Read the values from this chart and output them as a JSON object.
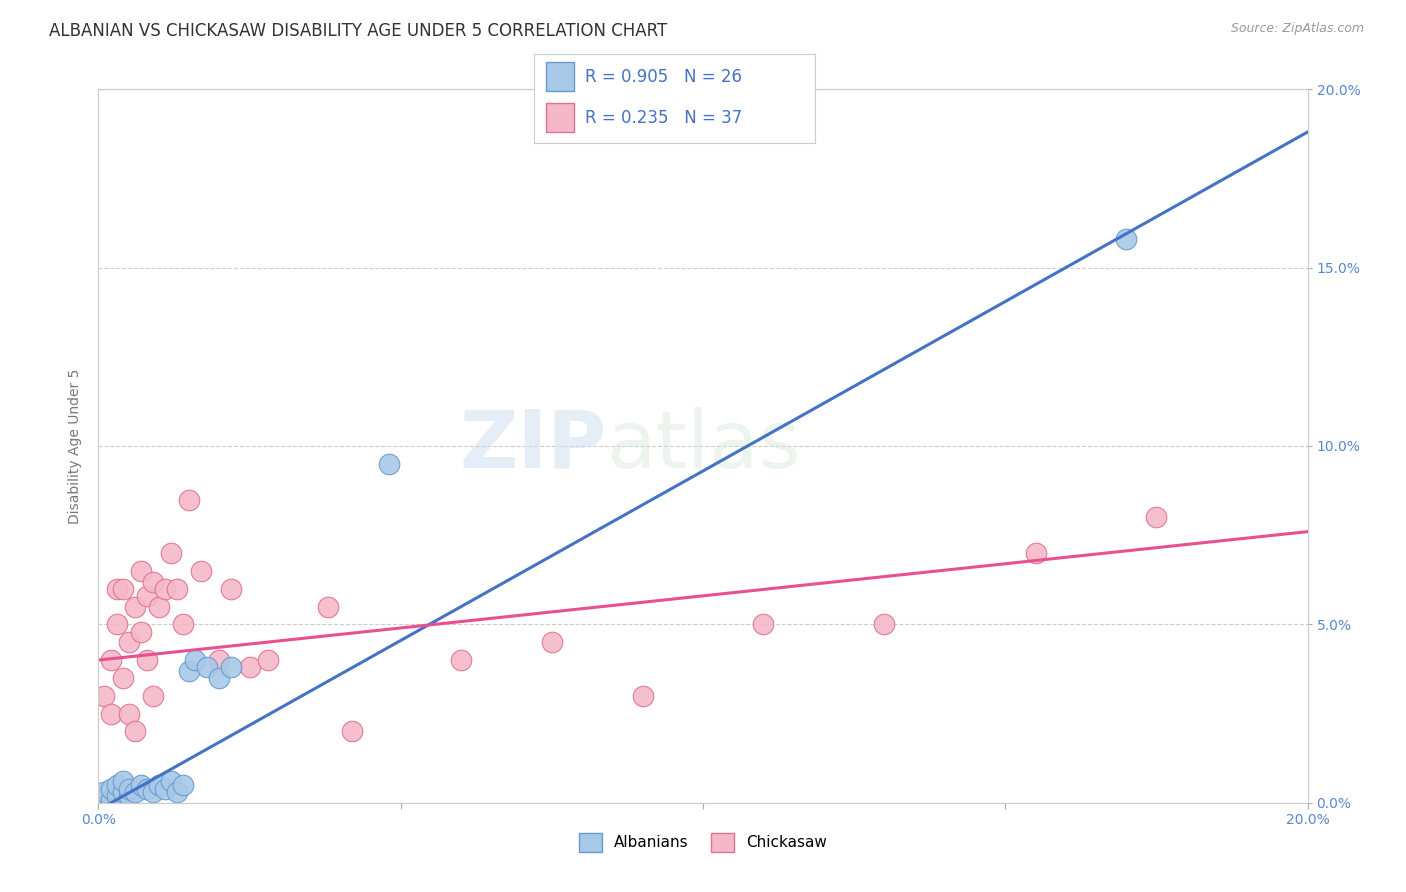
{
  "title": "ALBANIAN VS CHICKASAW DISABILITY AGE UNDER 5 CORRELATION CHART",
  "source": "Source: ZipAtlas.com",
  "ylabel": "Disability Age Under 5",
  "xlim": [
    0.0,
    0.2
  ],
  "ylim": [
    0.0,
    0.2
  ],
  "background_color": "#ffffff",
  "grid_color": "#cccccc",
  "albanians_color": "#a8c8e8",
  "albanians_edge_color": "#6699cc",
  "chickasaw_color": "#f4b8c8",
  "chickasaw_edge_color": "#e07090",
  "albanians_R": 0.905,
  "albanians_N": 26,
  "chickasaw_R": 0.235,
  "chickasaw_N": 37,
  "watermark_zip": "ZIP",
  "watermark_atlas": "atlas",
  "albanians_line_color": "#4472c4",
  "chickasaw_line_color": "#e85090",
  "ytick_labels": [
    "0.0%",
    "5.0%",
    "10.0%",
    "15.0%",
    "20.0%"
  ],
  "ytick_values": [
    0.0,
    0.05,
    0.1,
    0.15,
    0.2
  ],
  "title_fontsize": 12,
  "axis_label_fontsize": 10,
  "tick_fontsize": 10,
  "albanians_scatter_x": [
    0.001,
    0.001,
    0.002,
    0.002,
    0.003,
    0.003,
    0.004,
    0.004,
    0.005,
    0.005,
    0.006,
    0.007,
    0.008,
    0.009,
    0.01,
    0.011,
    0.012,
    0.013,
    0.014,
    0.015,
    0.016,
    0.018,
    0.02,
    0.022,
    0.048,
    0.17
  ],
  "albanians_scatter_y": [
    0.002,
    0.003,
    0.001,
    0.004,
    0.002,
    0.005,
    0.003,
    0.006,
    0.002,
    0.004,
    0.003,
    0.005,
    0.004,
    0.003,
    0.005,
    0.004,
    0.006,
    0.003,
    0.005,
    0.037,
    0.04,
    0.038,
    0.035,
    0.038,
    0.095,
    0.158
  ],
  "chickasaw_scatter_x": [
    0.001,
    0.002,
    0.002,
    0.003,
    0.003,
    0.004,
    0.004,
    0.005,
    0.005,
    0.006,
    0.006,
    0.007,
    0.007,
    0.008,
    0.008,
    0.009,
    0.009,
    0.01,
    0.011,
    0.012,
    0.013,
    0.014,
    0.015,
    0.017,
    0.02,
    0.022,
    0.025,
    0.028,
    0.038,
    0.042,
    0.06,
    0.075,
    0.09,
    0.11,
    0.13,
    0.155,
    0.175
  ],
  "chickasaw_scatter_y": [
    0.03,
    0.04,
    0.025,
    0.05,
    0.06,
    0.035,
    0.06,
    0.025,
    0.045,
    0.02,
    0.055,
    0.048,
    0.065,
    0.04,
    0.058,
    0.03,
    0.062,
    0.055,
    0.06,
    0.07,
    0.06,
    0.05,
    0.085,
    0.065,
    0.04,
    0.06,
    0.038,
    0.04,
    0.055,
    0.02,
    0.04,
    0.045,
    0.03,
    0.05,
    0.05,
    0.07,
    0.08
  ],
  "albanians_line_slope": 0.95,
  "albanians_line_intercept": -0.002,
  "chickasaw_line_slope": 0.18,
  "chickasaw_line_intercept": 0.04
}
